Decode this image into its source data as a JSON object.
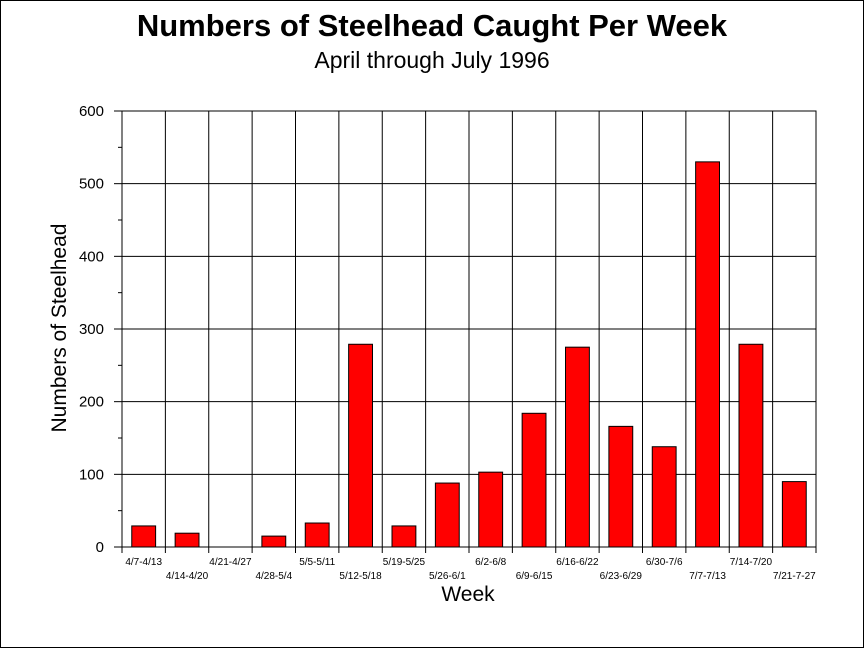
{
  "chart_data": {
    "type": "bar",
    "title": "Numbers of Steelhead Caught Per Week",
    "subtitle": "April through July 1996",
    "xlabel": "Week",
    "ylabel": "Numbers of Steelhead",
    "ylim": [
      0,
      600
    ],
    "yticks": [
      "0",
      "100",
      "200",
      "300",
      "400",
      "500",
      "600"
    ],
    "categories": [
      "4/7-4/13",
      "4/14-4/20",
      "4/21-4/27",
      "4/28-5/4",
      "5/5-5/11",
      "5/12-5/18",
      "5/19-5/25",
      "5/26-6/1",
      "6/2-6/8",
      "6/9-6/15",
      "6/16-6/22",
      "6/23-6/29",
      "6/30-7/6",
      "7/7-7/13",
      "7/14-7/20",
      "7/21-7-27"
    ],
    "values": [
      29,
      19,
      0,
      15,
      33,
      279,
      29,
      88,
      103,
      184,
      275,
      166,
      138,
      530,
      279,
      90
    ],
    "grid": true,
    "bar_color": "#ff0000"
  }
}
